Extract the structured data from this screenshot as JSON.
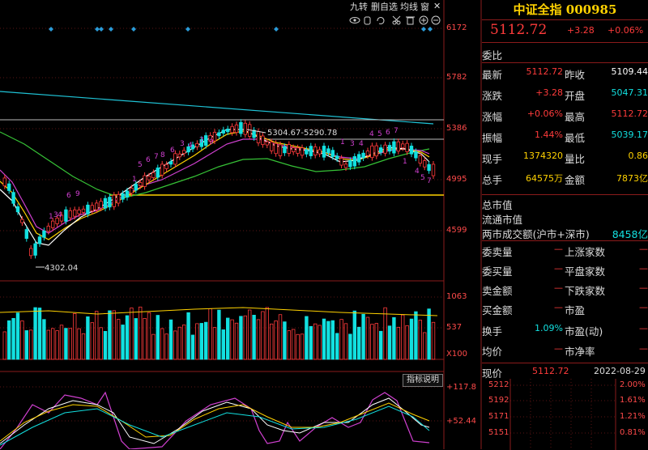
{
  "toolbar": {
    "items": [
      "九转",
      "删自选",
      "均线",
      "窗"
    ]
  },
  "price_axis": {
    "labels": [
      "6172",
      "5782",
      "5386",
      "4995",
      "4599"
    ]
  },
  "volume_axis": {
    "labels": [
      "1063",
      "537",
      "X100"
    ]
  },
  "osc_axis": {
    "labels": [
      "+117.8",
      "+52.44"
    ]
  },
  "annotations": {
    "range": "5304.67-5290.78",
    "low": "4302.04"
  },
  "indicator_button": "指标说明",
  "quote": {
    "title": "中证全指 000985",
    "price": "5112.72",
    "change": "+3.28",
    "pct": "+0.06%",
    "wb_label": "委比",
    "rows": [
      {
        "l1": "最新",
        "v1": "5112.72",
        "l2": "昨收",
        "v2": "5109.44"
      },
      {
        "l1": "涨跌",
        "v1": "+3.28",
        "l2": "开盘",
        "v2": "5047.31"
      },
      {
        "l1": "涨幅",
        "v1": "+0.06%",
        "l2": "最高",
        "v2": "5112.72"
      },
      {
        "l1": "振幅",
        "v1": "1.44%",
        "l2": "最低",
        "v2": "5039.17"
      },
      {
        "l1": "现手",
        "v1": "1374320",
        "l2": "量比",
        "v2": "0.86"
      },
      {
        "l1": "总手",
        "v1": "64575万",
        "l2": "金额",
        "v2": "7873亿"
      }
    ],
    "market_value": "总市值",
    "float_value": "流通市值",
    "two_market_label": "两市成交额(沪市+深市)",
    "two_market_value": "8458亿",
    "stats": [
      {
        "l1": "委卖量",
        "v1": "—",
        "l2": "上涨家数",
        "v2": "—"
      },
      {
        "l1": "委买量",
        "v1": "—",
        "l2": "平盘家数",
        "v2": "—"
      },
      {
        "l1": "卖金额",
        "v1": "—",
        "l2": "下跌家数",
        "v2": "—"
      },
      {
        "l1": "买金额",
        "v1": "—",
        "l2": "市盈",
        "v2": "—"
      },
      {
        "l1": "换手",
        "v1": "1.09%",
        "l2": "市盈(动)",
        "v2": "—"
      },
      {
        "l1": "均价",
        "v1": "—",
        "l2": "市净率",
        "v2": "—"
      }
    ],
    "bottom": {
      "label": "现价",
      "value": "5112.72",
      "date": "2022-08-29"
    }
  },
  "intraday": {
    "left_labels": [
      "5212",
      "5192",
      "5171",
      "5151"
    ],
    "right_labels": [
      "2.00%",
      "1.61%",
      "1.21%",
      "0.81%"
    ]
  },
  "colors": {
    "up": "#ff3b3b",
    "down": "#12e0e0",
    "accent": "#ffd200"
  }
}
